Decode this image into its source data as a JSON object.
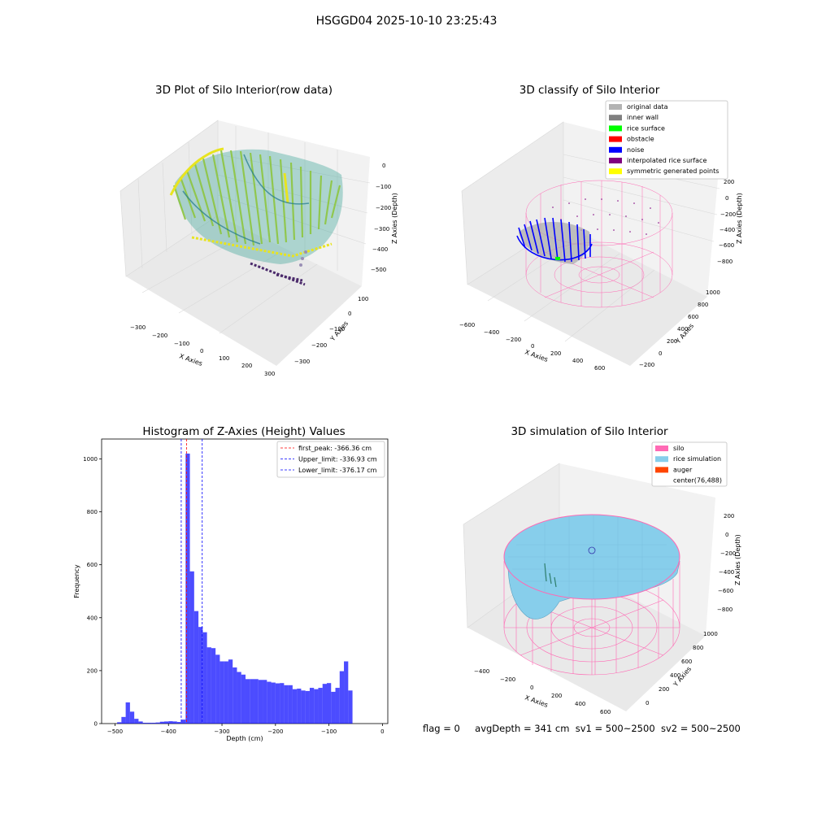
{
  "figure": {
    "suptitle": "HSGGD04 2025-10-10 23:25:43",
    "status_text": {
      "flag": "flag = 0",
      "avg_depth": "avgDepth = 341 cm",
      "sv1": "sv1 = 500~2500",
      "sv2": "sv2 = 500~2500"
    }
  },
  "panels": {
    "raw": {
      "title": "3D Plot of Silo Interior(row data)",
      "xlabel": "X Axies",
      "ylabel": "Y Axies",
      "zlabel": "Z Axies (Depth)",
      "xticks": [
        "−300",
        "−200",
        "−100",
        "0",
        "100",
        "200",
        "300"
      ],
      "yticks": [
        "100",
        "0",
        "−100",
        "−200",
        "−300"
      ],
      "zticks": [
        "0",
        "−100",
        "−200",
        "−300",
        "−400",
        "−500"
      ]
    },
    "classify": {
      "title": "3D classify of Silo Interior",
      "xlabel": "X Axies",
      "ylabel": "Y Axies",
      "zlabel": "Z Axies (Depth)",
      "xticks": [
        "−600",
        "−400",
        "−200",
        "0",
        "200",
        "400",
        "600"
      ],
      "yticks": [
        "1000",
        "800",
        "600",
        "400",
        "200",
        "0",
        "−200"
      ],
      "zticks": [
        "200",
        "0",
        "−200",
        "−400",
        "−600",
        "−800"
      ],
      "legend": [
        {
          "label": "original data",
          "color": "#b3b3b3"
        },
        {
          "label": "inner wall",
          "color": "#808080"
        },
        {
          "label": "rice surface",
          "color": "#00ff00"
        },
        {
          "label": "obstacle",
          "color": "#ff0000"
        },
        {
          "label": "noise",
          "color": "#0000ff"
        },
        {
          "label": "interpolated rice surface",
          "color": "#800080"
        },
        {
          "label": "symmetric generated points",
          "color": "#ffff00"
        }
      ]
    },
    "simulation": {
      "title": "3D simulation of Silo Interior",
      "xlabel": "X Axies",
      "ylabel": "Y Axies",
      "zlabel": "Z Axies (Depth)",
      "xticks": [
        "−400",
        "−200",
        "0",
        "200",
        "400",
        "600"
      ],
      "yticks": [
        "1000",
        "800",
        "600",
        "400",
        "200",
        "0"
      ],
      "zticks": [
        "200",
        "0",
        "−200",
        "−400",
        "−600",
        "−800"
      ],
      "legend": [
        {
          "label": "silo",
          "color": "#ff69b4"
        },
        {
          "label": "rice simulation",
          "color": "#87ceeb"
        },
        {
          "label": "auger",
          "color": "#ff4500"
        },
        {
          "label": "center(76,488)",
          "color": ""
        }
      ]
    }
  },
  "chart_data": {
    "type": "bar",
    "title": "Histogram of Z-Axies (Height) Values",
    "xlabel": "Depth (cm)",
    "ylabel": "Frequency",
    "xlim": [
      -525,
      10
    ],
    "ylim": [
      0,
      1075
    ],
    "xticks": [
      -500,
      -400,
      -300,
      -200,
      -100,
      0
    ],
    "yticks": [
      0,
      200,
      400,
      600,
      800,
      1000
    ],
    "bar_color": "#0000ff",
    "bins": [
      {
        "x0": -496,
        "x1": -488,
        "count": 5
      },
      {
        "x0": -488,
        "x1": -480,
        "count": 25
      },
      {
        "x0": -480,
        "x1": -472,
        "count": 80
      },
      {
        "x0": -472,
        "x1": -464,
        "count": 45
      },
      {
        "x0": -464,
        "x1": -456,
        "count": 18
      },
      {
        "x0": -456,
        "x1": -448,
        "count": 8
      },
      {
        "x0": -448,
        "x1": -440,
        "count": 3
      },
      {
        "x0": -440,
        "x1": -432,
        "count": 3
      },
      {
        "x0": -432,
        "x1": -424,
        "count": 3
      },
      {
        "x0": -424,
        "x1": -416,
        "count": 4
      },
      {
        "x0": -416,
        "x1": -408,
        "count": 7
      },
      {
        "x0": -408,
        "x1": -400,
        "count": 8
      },
      {
        "x0": -400,
        "x1": -392,
        "count": 9
      },
      {
        "x0": -392,
        "x1": -384,
        "count": 8
      },
      {
        "x0": -384,
        "x1": -376,
        "count": 6
      },
      {
        "x0": -376,
        "x1": -368,
        "count": 15
      },
      {
        "x0": -368,
        "x1": -360,
        "count": 1020
      },
      {
        "x0": -360,
        "x1": -352,
        "count": 575
      },
      {
        "x0": -352,
        "x1": -344,
        "count": 425
      },
      {
        "x0": -344,
        "x1": -336,
        "count": 365
      },
      {
        "x0": -336,
        "x1": -328,
        "count": 345
      },
      {
        "x0": -328,
        "x1": -320,
        "count": 288
      },
      {
        "x0": -320,
        "x1": -312,
        "count": 285
      },
      {
        "x0": -312,
        "x1": -304,
        "count": 260
      },
      {
        "x0": -304,
        "x1": -296,
        "count": 235
      },
      {
        "x0": -296,
        "x1": -288,
        "count": 235
      },
      {
        "x0": -288,
        "x1": -280,
        "count": 242
      },
      {
        "x0": -280,
        "x1": -272,
        "count": 212
      },
      {
        "x0": -272,
        "x1": -264,
        "count": 195
      },
      {
        "x0": -264,
        "x1": -256,
        "count": 185
      },
      {
        "x0": -256,
        "x1": -248,
        "count": 168
      },
      {
        "x0": -248,
        "x1": -240,
        "count": 168
      },
      {
        "x0": -240,
        "x1": -232,
        "count": 168
      },
      {
        "x0": -232,
        "x1": -224,
        "count": 165
      },
      {
        "x0": -224,
        "x1": -216,
        "count": 165
      },
      {
        "x0": -216,
        "x1": -208,
        "count": 158
      },
      {
        "x0": -208,
        "x1": -200,
        "count": 155
      },
      {
        "x0": -200,
        "x1": -192,
        "count": 152
      },
      {
        "x0": -192,
        "x1": -184,
        "count": 153
      },
      {
        "x0": -184,
        "x1": -176,
        "count": 145
      },
      {
        "x0": -176,
        "x1": -168,
        "count": 145
      },
      {
        "x0": -168,
        "x1": -160,
        "count": 130
      },
      {
        "x0": -160,
        "x1": -152,
        "count": 132
      },
      {
        "x0": -152,
        "x1": -144,
        "count": 125
      },
      {
        "x0": -144,
        "x1": -136,
        "count": 123
      },
      {
        "x0": -136,
        "x1": -128,
        "count": 135
      },
      {
        "x0": -128,
        "x1": -120,
        "count": 130
      },
      {
        "x0": -120,
        "x1": -112,
        "count": 135
      },
      {
        "x0": -112,
        "x1": -104,
        "count": 150
      },
      {
        "x0": -104,
        "x1": -96,
        "count": 153
      },
      {
        "x0": -96,
        "x1": -88,
        "count": 120
      },
      {
        "x0": -88,
        "x1": -80,
        "count": 135
      },
      {
        "x0": -80,
        "x1": -72,
        "count": 198
      },
      {
        "x0": -72,
        "x1": -64,
        "count": 235
      },
      {
        "x0": -64,
        "x1": -56,
        "count": 125
      }
    ],
    "reference_lines": [
      {
        "label": "first_peak: -366.36 cm",
        "x": -366.36,
        "color": "#ff0000"
      },
      {
        "label": "Upper_limit: -336.93 cm",
        "x": -336.93,
        "color": "#0000ff"
      },
      {
        "label": "Lower_limit: -376.17 cm",
        "x": -376.17,
        "color": "#0000ff"
      }
    ]
  }
}
